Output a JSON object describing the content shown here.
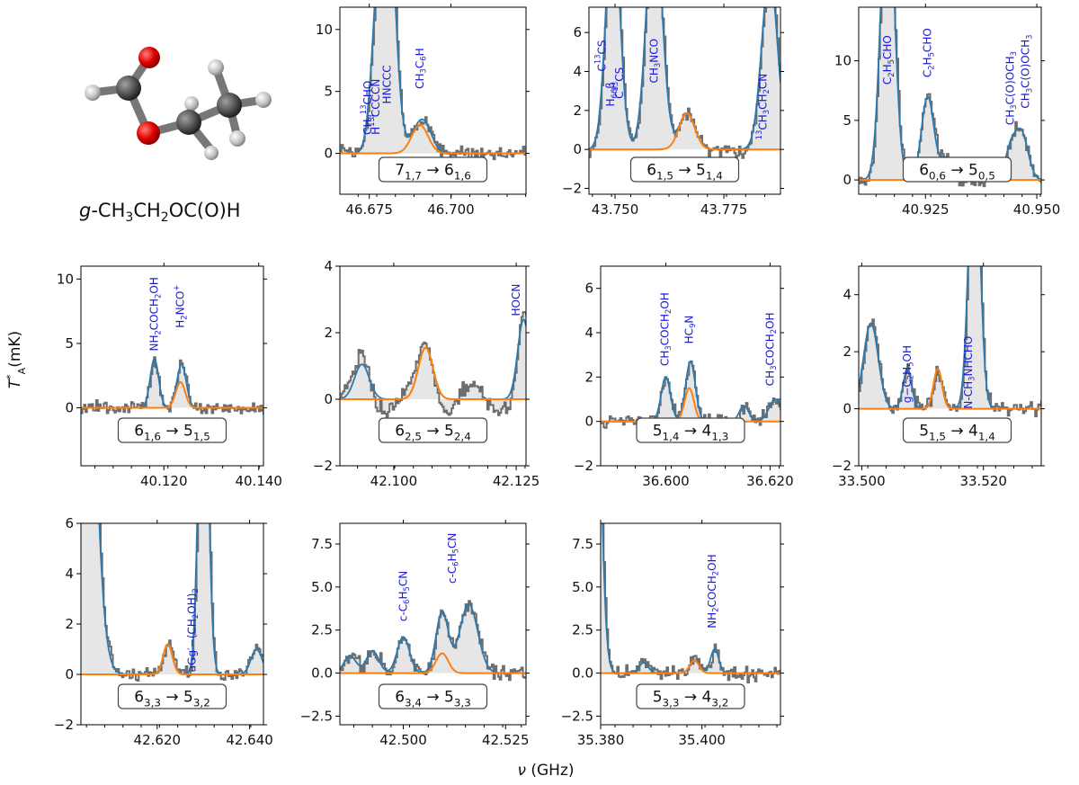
{
  "molecule": {
    "caption_prefix": "g",
    "caption_formula": "-CH3CH2OC(O)H"
  },
  "axis_labels": {
    "ylabel": "T*A(mK)",
    "xlabel": "ν (GHz)"
  },
  "colors": {
    "observed": "#6e6e6e",
    "observed_fill": "#e6e6e6",
    "total_model": "#2a7ab0",
    "molecule_model": "#ff7f0e",
    "label_text": "#1a1ad6",
    "box_edge": "#444444"
  },
  "chart_data": [
    {
      "type": "line",
      "transition": "7_{1,7} → 6_{1,6}",
      "xlim": [
        46.666,
        46.723
      ],
      "ylim": [
        -3.3,
        11.8
      ],
      "xticks": [
        46.675,
        46.7
      ],
      "xtick_labels": [
        "46.675",
        "46.700"
      ],
      "yticks": [
        0,
        5,
        10
      ],
      "ytick_labels": [
        "0",
        "5",
        "10"
      ],
      "model": {
        "center": 46.6905,
        "height": 2.3,
        "width": 0.0025
      },
      "other_lines": [
        {
          "center": 46.68,
          "height": 25,
          "width": 0.0025
        },
        {
          "center": 46.676,
          "height": 2.0,
          "width": 0.0015
        },
        {
          "center": 46.693,
          "height": 0.8,
          "width": 0.002
        }
      ],
      "labels": [
        {
          "text": "CH3^{13}CHO",
          "x": 46.6745,
          "y": 1.5
        },
        {
          "text": "H^{13}CCCCN",
          "x": 46.677,
          "y": 1.5
        },
        {
          "text": "HNCCC",
          "x": 46.6805,
          "y": 4.0
        },
        {
          "text": "CH3C6H",
          "x": 46.6905,
          "y": 5.2
        }
      ]
    },
    {
      "type": "line",
      "transition": "6_{1,5} → 5_{1,4}",
      "xlim": [
        43.744,
        43.788
      ],
      "ylim": [
        -2.3,
        7.3
      ],
      "xticks": [
        43.75,
        43.775
      ],
      "xtick_labels": [
        "43.750",
        "43.775"
      ],
      "yticks": [
        -2,
        0,
        2,
        4,
        6
      ],
      "ytick_labels": [
        "−2",
        "0",
        "2",
        "4",
        "6"
      ],
      "model": {
        "center": 43.7665,
        "height": 1.85,
        "width": 0.0018
      },
      "other_lines": [
        {
          "center": 43.7495,
          "height": 12,
          "width": 0.0016
        },
        {
          "center": 43.759,
          "height": 12,
          "width": 0.0018
        },
        {
          "center": 43.7855,
          "height": 9,
          "width": 0.0018
        }
      ],
      "labels": [
        {
          "text": "C^{13}CS",
          "x": 43.747,
          "y": 4.0
        },
        {
          "text": "H66β",
          "x": 43.749,
          "y": 2.2
        },
        {
          "text": "C^{13}CS",
          "x": 43.751,
          "y": 2.6
        },
        {
          "text": "CH3NCO",
          "x": 43.759,
          "y": 3.4
        },
        {
          "text": "^{13}CH3CH2CN",
          "x": 43.784,
          "y": 0.5
        }
      ]
    },
    {
      "type": "line",
      "transition": "6_{0,6} → 5_{0,5}",
      "xlim": [
        40.91,
        40.951
      ],
      "ylim": [
        -1.2,
        14.5
      ],
      "xticks": [
        40.925,
        40.95
      ],
      "xtick_labels": [
        "40.925",
        "40.950"
      ],
      "yticks": [
        0,
        5,
        10
      ],
      "ytick_labels": [
        "0",
        "5",
        "10"
      ],
      "model": {
        "center": 40.9295,
        "height": 1.8,
        "width": 0.0012
      },
      "other_lines": [
        {
          "center": 40.9165,
          "height": 25,
          "width": 0.0015
        },
        {
          "center": 40.9255,
          "height": 7.0,
          "width": 0.0014
        },
        {
          "center": 40.944,
          "height": 2.2,
          "width": 0.0012
        },
        {
          "center": 40.9465,
          "height": 4.0,
          "width": 0.0015
        }
      ],
      "labels": [
        {
          "text": "C2H5CHO",
          "x": 40.9165,
          "y": 8.0
        },
        {
          "text": "C2H5CHO",
          "x": 40.9255,
          "y": 8.6
        },
        {
          "text": "CH3C(O)OCH3",
          "x": 40.944,
          "y": 4.6
        },
        {
          "text": "CH3C(O)OCH3",
          "x": 40.9475,
          "y": 6.0
        }
      ]
    },
    {
      "type": "line",
      "transition": "6_{1,6} → 5_{1,5}",
      "xlim": [
        40.1025,
        40.141
      ],
      "ylim": [
        -4.5,
        11.0
      ],
      "xticks": [
        40.12,
        40.14
      ],
      "xtick_labels": [
        "40.120",
        "40.140"
      ],
      "yticks": [
        0,
        5,
        10
      ],
      "ytick_labels": [
        "0",
        "5",
        "10"
      ],
      "model": {
        "center": 40.1235,
        "height": 2.0,
        "width": 0.001
      },
      "other_lines": [
        {
          "center": 40.118,
          "height": 3.8,
          "width": 0.0009
        },
        {
          "center": 40.124,
          "height": 1.5,
          "width": 0.0009
        }
      ],
      "labels": [
        {
          "text": "NH2COCH2OH",
          "x": 40.118,
          "y": 4.4
        },
        {
          "text": "H2NCO+",
          "x": 40.1235,
          "y": 6.2
        }
      ]
    },
    {
      "type": "line",
      "transition": "6_{2,5} → 5_{2,4}",
      "xlim": [
        42.089,
        42.127
      ],
      "ylim": [
        -2.0,
        4.0
      ],
      "xticks": [
        42.1,
        42.125
      ],
      "xtick_labels": [
        "42.100",
        "42.125"
      ],
      "yticks": [
        -2,
        0,
        2,
        4
      ],
      "ytick_labels": [
        "−2",
        "0",
        "2",
        "4"
      ],
      "model": {
        "center": 42.1065,
        "height": 1.55,
        "width": 0.0015
      },
      "other_lines": [
        {
          "center": 42.0935,
          "height": 1.05,
          "width": 0.0015
        },
        {
          "center": 42.1265,
          "height": 2.4,
          "width": 0.0012
        }
      ],
      "labels": [
        {
          "text": "HOCN",
          "x": 42.125,
          "y": 2.5
        }
      ]
    },
    {
      "type": "line",
      "transition": "5_{1,4} → 4_{1,3}",
      "xlim": [
        36.5875,
        36.622
      ],
      "ylim": [
        -2.0,
        7.0
      ],
      "xticks": [
        36.6,
        36.62
      ],
      "xtick_labels": [
        "36.600",
        "36.620"
      ],
      "yticks": [
        -2,
        0,
        2,
        4,
        6
      ],
      "ytick_labels": [
        "−2",
        "0",
        "2",
        "4",
        "6"
      ],
      "model": {
        "center": 36.6045,
        "height": 1.5,
        "width": 0.0009
      },
      "other_lines": [
        {
          "center": 36.6,
          "height": 2.0,
          "width": 0.0009
        },
        {
          "center": 36.605,
          "height": 1.3,
          "width": 0.0009
        },
        {
          "center": 36.615,
          "height": 0.7,
          "width": 0.0009
        },
        {
          "center": 36.621,
          "height": 1.0,
          "width": 0.0012
        }
      ],
      "labels": [
        {
          "text": "CH3COCH2OH",
          "x": 36.5998,
          "y": 2.5
        },
        {
          "text": "HC9N",
          "x": 36.6045,
          "y": 3.5
        },
        {
          "text": "CH3COCH2OH",
          "x": 36.62,
          "y": 1.6
        }
      ]
    },
    {
      "type": "line",
      "transition": "5_{1,5} → 4_{1,4}",
      "xlim": [
        33.4995,
        33.5295
      ],
      "ylim": [
        -2.0,
        5.0
      ],
      "xticks": [
        33.5,
        33.52
      ],
      "xtick_labels": [
        "33.500",
        "33.520"
      ],
      "yticks": [
        -2,
        0,
        2,
        4
      ],
      "ytick_labels": [
        "−2",
        "0",
        "2",
        "4"
      ],
      "model": {
        "center": 33.5125,
        "height": 1.4,
        "width": 0.0007
      },
      "other_lines": [
        {
          "center": 33.5015,
          "height": 3.0,
          "width": 0.0012
        },
        {
          "center": 33.5075,
          "height": 1.4,
          "width": 0.0007
        },
        {
          "center": 33.5185,
          "height": 10,
          "width": 0.0009
        }
      ],
      "labels": [
        {
          "text": "g−C2H5OH",
          "x": 33.5075,
          "y": 0.2
        },
        {
          "text": "N-CH3NHCHO",
          "x": 33.5175,
          "y": 0.0
        }
      ]
    },
    {
      "type": "line",
      "transition": "6_{3,3} → 5_{3,2}",
      "xlim": [
        42.6035,
        42.643
      ],
      "ylim": [
        -2.0,
        6.0
      ],
      "xticks": [
        42.62,
        42.64
      ],
      "xtick_labels": [
        "42.620",
        "42.640"
      ],
      "yticks": [
        -2,
        0,
        2,
        4,
        6
      ],
      "ytick_labels": [
        "−2",
        "0",
        "2",
        "4",
        "6"
      ],
      "model": {
        "center": 42.6223,
        "height": 1.2,
        "width": 0.001
      },
      "other_lines": [
        {
          "center": 42.603,
          "height": 30,
          "width": 0.0025
        },
        {
          "center": 42.63,
          "height": 15,
          "width": 0.001
        },
        {
          "center": 42.6415,
          "height": 1.0,
          "width": 0.0012
        }
      ],
      "labels": [
        {
          "text": "aGg′−(CH2OH)2",
          "x": 42.6275,
          "y": 0.1
        }
      ]
    },
    {
      "type": "line",
      "transition": "6_{3,4} → 5_{3,3}",
      "xlim": [
        42.4845,
        42.53
      ],
      "ylim": [
        -3.0,
        8.7
      ],
      "xticks": [
        42.5,
        42.525
      ],
      "xtick_labels": [
        "42.500",
        "42.525"
      ],
      "yticks": [
        -2.5,
        0,
        2.5,
        5,
        7.5
      ],
      "ytick_labels": [
        "−2.5",
        "0.0",
        "2.5",
        "5.0",
        "7.5"
      ],
      "model": {
        "center": 42.5095,
        "height": 1.15,
        "width": 0.0015
      },
      "other_lines": [
        {
          "center": 42.487,
          "height": 1.0,
          "width": 0.0015
        },
        {
          "center": 42.4925,
          "height": 1.3,
          "width": 0.0015
        },
        {
          "center": 42.5,
          "height": 2.1,
          "width": 0.0015
        },
        {
          "center": 42.5095,
          "height": 2.4,
          "width": 0.0015
        },
        {
          "center": 42.516,
          "height": 4.0,
          "width": 0.0022
        }
      ],
      "labels": [
        {
          "text": "c-C6H5CN",
          "x": 42.5,
          "y": 3.0
        },
        {
          "text": "c-C6H5CN",
          "x": 42.512,
          "y": 5.2
        }
      ]
    },
    {
      "type": "line",
      "transition": "5_{3,3} → 4_{3,2}",
      "xlim": [
        35.38,
        35.4155
      ],
      "ylim": [
        -3.0,
        8.7
      ],
      "xticks": [
        35.38,
        35.4
      ],
      "xtick_labels": [
        "35.380",
        "35.400"
      ],
      "yticks": [
        -2.5,
        0,
        2.5,
        5,
        7.5
      ],
      "ytick_labels": [
        "−2.5",
        "0.0",
        "2.5",
        "5.0",
        "7.5"
      ],
      "model": {
        "center": 35.3985,
        "height": 0.75,
        "width": 0.0009
      },
      "other_lines": [
        {
          "center": 35.3785,
          "height": 30,
          "width": 0.0012
        },
        {
          "center": 35.3885,
          "height": 0.6,
          "width": 0.0009
        },
        {
          "center": 35.4025,
          "height": 1.4,
          "width": 0.0008
        }
      ],
      "labels": [
        {
          "text": "NH2COCH2OH",
          "x": 35.402,
          "y": 2.6
        }
      ]
    }
  ]
}
